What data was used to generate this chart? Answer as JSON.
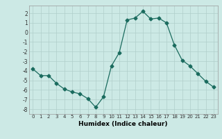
{
  "x": [
    0,
    1,
    2,
    3,
    4,
    5,
    6,
    7,
    8,
    9,
    10,
    11,
    12,
    13,
    14,
    15,
    16,
    17,
    18,
    19,
    20,
    21,
    22,
    23
  ],
  "y": [
    -3.8,
    -4.5,
    -4.5,
    -5.3,
    -5.9,
    -6.2,
    -6.4,
    -6.9,
    -7.8,
    -6.7,
    -3.5,
    -2.1,
    1.3,
    1.5,
    2.2,
    1.4,
    1.5,
    1.0,
    -1.3,
    -2.9,
    -3.5,
    -4.3,
    -5.1,
    -5.7
  ],
  "line_color": "#1a6b5e",
  "marker": "D",
  "marker_size": 2.5,
  "bg_color": "#cce9e5",
  "grid_color": "#b0ceca",
  "xlabel": "Humidex (Indice chaleur)",
  "ylim": [
    -8.5,
    2.8
  ],
  "xlim": [
    -0.5,
    23.5
  ],
  "yticks": [
    -8,
    -7,
    -6,
    -5,
    -4,
    -3,
    -2,
    -1,
    0,
    1,
    2
  ],
  "xticks": [
    0,
    1,
    2,
    3,
    4,
    5,
    6,
    7,
    8,
    9,
    10,
    11,
    12,
    13,
    14,
    15,
    16,
    17,
    18,
    19,
    20,
    21,
    22,
    23
  ]
}
